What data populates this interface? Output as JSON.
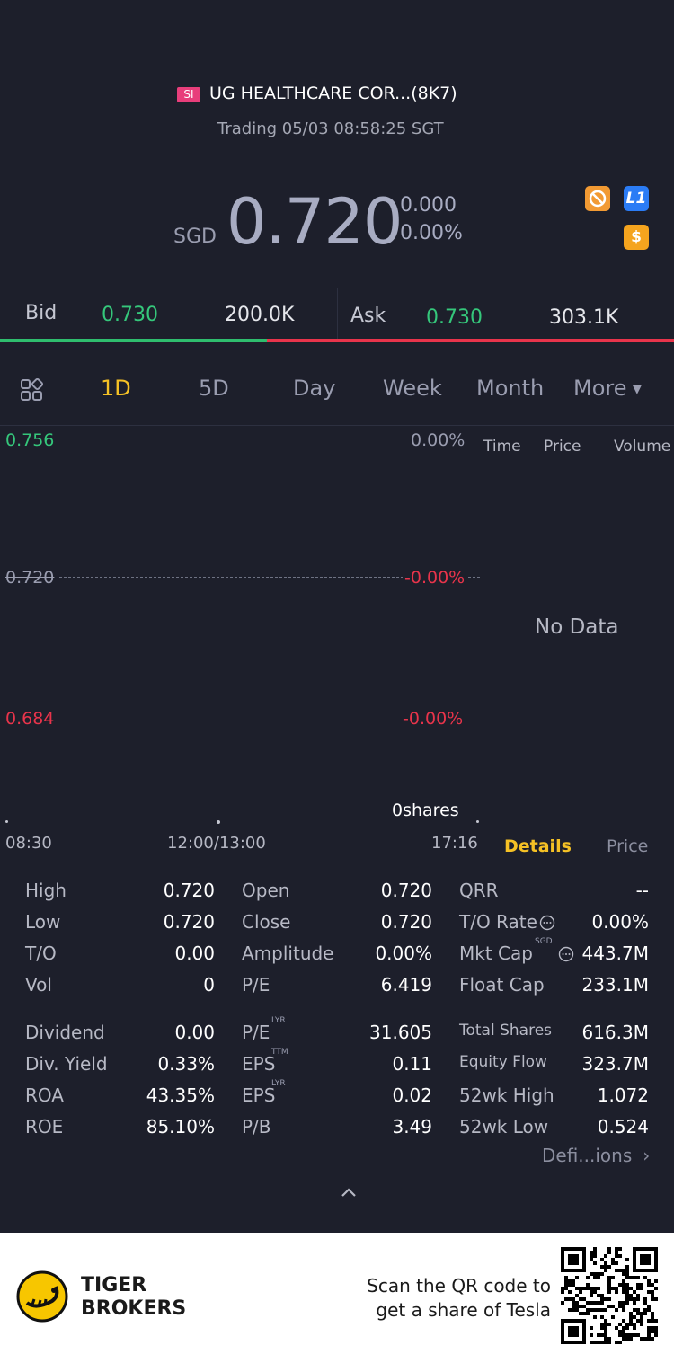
{
  "header": {
    "market_tag": "SI",
    "stock_name": "UG HEALTHCARE COR...(8K7)",
    "trading_status": "Trading 05/03 08:58:25 SGT",
    "currency": "SGD",
    "price": "0.720",
    "change": "0.000",
    "change_pct": "0.00%",
    "badges": [
      "no-short-icon",
      "L1",
      "$"
    ]
  },
  "bidask": {
    "bid_label": "Bid",
    "bid_price": "0.730",
    "bid_vol": "200.0K",
    "ask_label": "Ask",
    "ask_price": "0.730",
    "ask_vol": "303.1K",
    "bid_ratio": 0.396
  },
  "tabs": [
    "1D",
    "5D",
    "Day",
    "Week",
    "Month",
    "More"
  ],
  "active_tab": "1D",
  "chart": {
    "y_high": "0.756",
    "y_mid": "0.720",
    "y_low": "0.684",
    "pct_high": "0.00%",
    "pct_mid": "-0.00%",
    "pct_low": "-0.00%",
    "volume": "0shares",
    "x_labels": [
      "08:30",
      "12:00/13:00",
      "17:16"
    ]
  },
  "trades": {
    "headers": [
      "Time",
      "Price",
      "Volume"
    ],
    "empty": "No Data",
    "bottom_tabs": [
      "Details",
      "Price"
    ]
  },
  "stats": {
    "col1": [
      {
        "label": "High",
        "value": "0.720"
      },
      {
        "label": "Low",
        "value": "0.720"
      },
      {
        "label": "T/O",
        "value": "0.00"
      },
      {
        "label": "Vol",
        "value": "0"
      },
      {
        "label": "Dividend",
        "value": "0.00"
      },
      {
        "label": "Div. Yield",
        "value": "0.33%"
      },
      {
        "label": "ROA",
        "value": "43.35%"
      },
      {
        "label": "ROE",
        "value": "85.10%"
      }
    ],
    "col2": [
      {
        "label": "Open",
        "value": "0.720",
        "sup": ""
      },
      {
        "label": "Close",
        "value": "0.720",
        "sup": ""
      },
      {
        "label": "Amplitude",
        "value": "0.00%",
        "sup": ""
      },
      {
        "label": "P/E",
        "value": "6.419",
        "sup": ""
      },
      {
        "label": "P/E",
        "value": "31.605",
        "sup": "LYR"
      },
      {
        "label": "EPS",
        "value": "0.11",
        "sup": "TTM"
      },
      {
        "label": "EPS",
        "value": "0.02",
        "sup": "LYR"
      },
      {
        "label": "P/B",
        "value": "3.49",
        "sup": ""
      }
    ],
    "col3": [
      {
        "label": "QRR",
        "value": "--",
        "sup": ""
      },
      {
        "label": "T/O Rate",
        "value": "0.00%",
        "sup": ""
      },
      {
        "label": "Mkt Cap",
        "value": "443.7M",
        "sup": "SGD"
      },
      {
        "label": "Float Cap",
        "value": "233.1M",
        "sup": ""
      },
      {
        "label": "Total Shares",
        "value": "616.3M",
        "sup": ""
      },
      {
        "label": "Equity Flow",
        "value": "323.7M",
        "sup": ""
      },
      {
        "label": "52wk High",
        "value": "1.072",
        "sup": ""
      },
      {
        "label": "52wk Low",
        "value": "0.524",
        "sup": ""
      }
    ],
    "definitions": "Defi...ions"
  },
  "footer": {
    "brand_line1": "TIGER",
    "brand_line2": "BROKERS",
    "scan_line1": "Scan the QR code to",
    "scan_line2": "get a share of Tesla"
  },
  "colors": {
    "up": "#35c77b",
    "down": "#e8344b",
    "accent": "#f5c125",
    "bg": "#1d1f2b"
  }
}
